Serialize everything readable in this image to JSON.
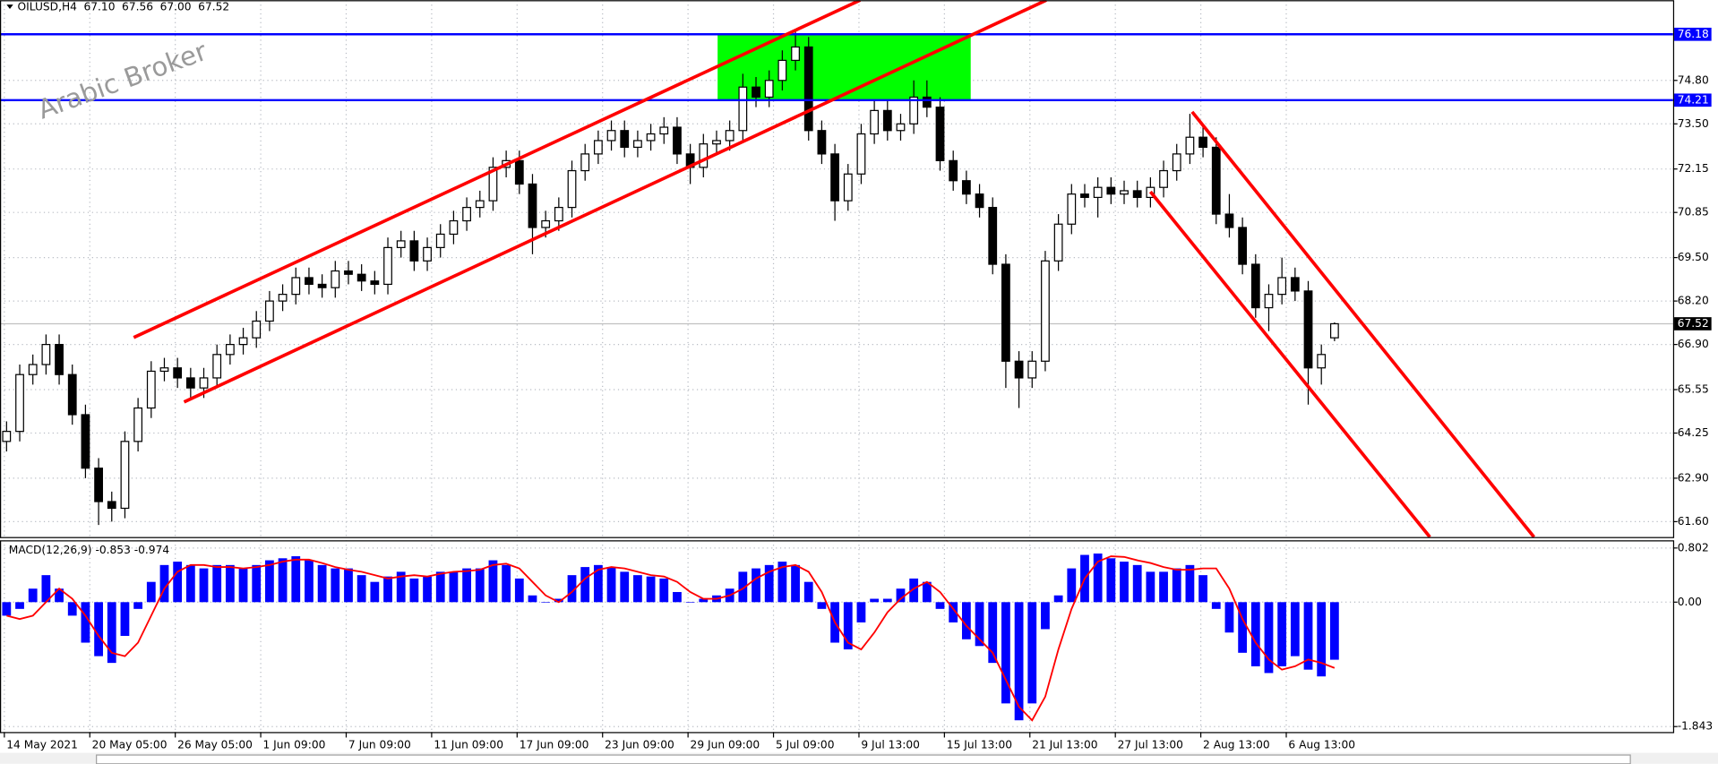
{
  "chart_data": [
    {
      "type": "candlestick",
      "title": "OILUSD,H4",
      "quote": [
        "67.10",
        "67.56",
        "67.00",
        "67.52"
      ],
      "watermark": "Arabic Broker",
      "xlim": [
        -0.5,
        126.75
      ],
      "xticks": [
        {
          "value": -0.17,
          "label": "14 May 2021"
        },
        {
          "value": 6.33,
          "label": "20 May 05:00"
        },
        {
          "value": 12.83,
          "label": "26 May 05:00"
        },
        {
          "value": 19.33,
          "label": "1 Jun 09:00"
        },
        {
          "value": 25.83,
          "label": "7 Jun 09:00"
        },
        {
          "value": 32.33,
          "label": "11 Jun 09:00"
        },
        {
          "value": 38.83,
          "label": "17 Jun 09:00"
        },
        {
          "value": 45.33,
          "label": "23 Jun 09:00"
        },
        {
          "value": 51.83,
          "label": "29 Jun 09:00"
        },
        {
          "value": 58.33,
          "label": "5 Jul 09:00"
        },
        {
          "value": 64.83,
          "label": "9 Jul 13:00"
        },
        {
          "value": 71.33,
          "label": "15 Jul 13:00"
        },
        {
          "value": 77.83,
          "label": "21 Jul 13:00"
        },
        {
          "value": 84.33,
          "label": "27 Jul 13:00"
        },
        {
          "value": 90.83,
          "label": "2 Aug 13:00"
        },
        {
          "value": 97.33,
          "label": "6 Aug 13:00"
        }
      ],
      "ylim": [
        61.14,
        77.2
      ],
      "yticks": [
        {
          "value": 61.6,
          "label": "61.60"
        },
        {
          "value": 62.9,
          "label": "62.90"
        },
        64.25,
        65.55,
        {
          "value": 66.9,
          "label": "66.90"
        },
        {
          "value": 68.2,
          "label": "68.20"
        },
        {
          "value": 69.5,
          "label": "69.50"
        },
        70.85,
        72.15,
        {
          "value": 73.5,
          "label": "73.50"
        },
        {
          "value": 74.8,
          "label": "74.80"
        }
      ],
      "grid": true,
      "colors": {
        "up": "#ffffff",
        "down": "#000000",
        "level": "#0000ff",
        "trend": "#ff0000",
        "zone": "#00ff00",
        "current": "#c0c0c0"
      },
      "open": [
        64.0,
        64.3,
        66.0,
        66.3,
        66.9,
        66.0,
        64.8,
        63.2,
        62.2,
        62.0,
        64.0,
        65.0,
        66.1,
        66.2,
        65.9,
        65.6,
        65.9,
        66.6,
        66.9,
        67.1,
        67.6,
        68.2,
        68.4,
        68.9,
        68.7,
        68.6,
        69.1,
        69.0,
        68.8,
        68.7,
        69.8,
        70.0,
        69.4,
        69.8,
        70.2,
        70.6,
        71.0,
        71.2,
        72.2,
        72.4,
        71.7,
        70.4,
        70.6,
        71.0,
        72.1,
        72.6,
        73.0,
        73.3,
        72.8,
        73.0,
        73.2,
        73.4,
        72.6,
        72.2,
        72.9,
        73.0,
        73.3,
        74.6,
        74.3,
        74.8,
        75.4,
        75.8,
        73.3,
        72.6,
        71.2,
        72.0,
        73.2,
        73.9,
        73.3,
        73.5,
        74.3,
        74.0,
        72.4,
        71.8,
        71.4,
        71.0,
        69.3,
        66.4,
        65.9,
        66.4,
        69.4,
        70.5,
        71.4,
        71.3,
        71.6,
        71.4,
        71.5,
        71.3,
        71.6,
        72.1,
        72.6,
        73.1,
        72.8,
        70.8,
        70.4,
        69.3,
        68.0,
        68.4,
        68.9,
        68.5,
        66.2,
        67.1
      ],
      "high": [
        64.6,
        66.3,
        66.6,
        67.2,
        67.2,
        66.3,
        65.1,
        63.5,
        62.5,
        64.3,
        65.3,
        66.4,
        66.5,
        66.5,
        66.2,
        66.2,
        66.9,
        67.2,
        67.4,
        67.9,
        68.5,
        68.7,
        69.2,
        69.2,
        69.0,
        69.4,
        69.4,
        69.3,
        69.1,
        70.1,
        70.3,
        70.3,
        70.1,
        70.5,
        70.9,
        71.3,
        71.5,
        72.5,
        72.7,
        72.7,
        72.0,
        70.9,
        71.3,
        72.4,
        72.9,
        73.3,
        73.6,
        73.6,
        73.3,
        73.5,
        73.7,
        73.7,
        72.9,
        73.2,
        73.3,
        73.6,
        75.0,
        74.9,
        75.1,
        75.7,
        76.3,
        76.1,
        73.6,
        72.9,
        72.3,
        73.5,
        74.2,
        74.2,
        73.8,
        74.8,
        74.8,
        74.3,
        72.7,
        72.1,
        71.7,
        71.3,
        69.6,
        66.7,
        66.7,
        69.7,
        70.8,
        71.7,
        71.7,
        71.9,
        71.9,
        71.8,
        71.8,
        71.9,
        72.4,
        72.9,
        73.8,
        73.4,
        73.1,
        71.4,
        70.7,
        69.6,
        68.7,
        69.5,
        69.2,
        68.8,
        66.9,
        67.56
      ],
      "low": [
        63.7,
        64.0,
        65.7,
        66.0,
        65.7,
        64.5,
        62.9,
        61.5,
        61.6,
        61.7,
        63.7,
        64.7,
        65.8,
        65.6,
        65.3,
        65.3,
        65.6,
        66.3,
        66.6,
        66.8,
        67.3,
        67.9,
        68.1,
        68.4,
        68.3,
        68.3,
        68.7,
        68.5,
        68.4,
        68.4,
        69.5,
        69.1,
        69.1,
        69.5,
        69.9,
        70.3,
        70.7,
        70.9,
        71.9,
        71.4,
        69.6,
        70.1,
        70.3,
        70.7,
        71.8,
        72.3,
        72.7,
        72.5,
        72.5,
        72.7,
        72.9,
        72.3,
        71.7,
        71.9,
        72.6,
        72.7,
        73.0,
        74.0,
        74.0,
        74.5,
        75.1,
        73.0,
        72.3,
        70.6,
        70.9,
        71.7,
        72.9,
        73.0,
        73.0,
        73.2,
        73.7,
        72.1,
        71.5,
        71.1,
        70.7,
        69.0,
        65.6,
        65.0,
        65.6,
        66.1,
        69.1,
        70.2,
        71.0,
        70.7,
        71.1,
        71.1,
        71.0,
        71.0,
        71.3,
        71.8,
        72.3,
        72.5,
        70.5,
        70.1,
        69.0,
        67.7,
        67.3,
        68.1,
        68.2,
        65.1,
        65.7,
        67.0
      ],
      "close": [
        64.3,
        66.0,
        66.3,
        66.9,
        66.0,
        64.8,
        63.2,
        62.2,
        62.0,
        64.0,
        65.0,
        66.1,
        66.2,
        65.9,
        65.6,
        65.9,
        66.6,
        66.9,
        67.1,
        67.6,
        68.2,
        68.4,
        68.9,
        68.7,
        68.6,
        69.1,
        69.0,
        68.8,
        68.7,
        69.8,
        70.0,
        69.4,
        69.8,
        70.2,
        70.6,
        71.0,
        71.2,
        72.2,
        72.4,
        71.7,
        70.4,
        70.6,
        71.0,
        72.1,
        72.6,
        73.0,
        73.3,
        72.8,
        73.0,
        73.2,
        73.4,
        72.6,
        72.2,
        72.9,
        73.0,
        73.3,
        74.6,
        74.3,
        74.8,
        75.4,
        75.8,
        73.3,
        72.6,
        71.2,
        72.0,
        73.2,
        73.9,
        73.3,
        73.5,
        74.3,
        74.0,
        72.4,
        71.8,
        71.4,
        71.0,
        69.3,
        66.4,
        65.9,
        66.4,
        69.4,
        70.5,
        71.4,
        71.3,
        71.6,
        71.4,
        71.5,
        71.3,
        71.6,
        72.1,
        72.6,
        73.1,
        72.8,
        70.8,
        70.4,
        69.3,
        68.0,
        68.4,
        68.9,
        68.5,
        66.2,
        66.6,
        67.52
      ],
      "levels": [
        {
          "value": 76.18,
          "label": "76.18"
        },
        {
          "value": 74.21,
          "label": "74.21"
        }
      ],
      "current_price": {
        "value": 67.52,
        "label": "67.52"
      },
      "zone": {
        "x": [
          54.08,
          73.33
        ],
        "y": [
          74.21,
          76.18
        ]
      },
      "trendlines": [
        {
          "x": [
            9.67,
            64.92
          ],
          "y": [
            67.11,
            77.2
          ]
        },
        {
          "x": [
            13.5,
            79.08
          ],
          "y": [
            65.18,
            77.2
          ]
        },
        {
          "x": [
            90.17,
            116.17
          ],
          "y": [
            73.86,
            61.14
          ]
        },
        {
          "x": [
            87.0,
            108.25
          ],
          "y": [
            71.47,
            61.14
          ]
        }
      ]
    },
    {
      "type": "macd",
      "title": "MACD(12,26,9) -0.853 -0.974",
      "xlim": [
        -0.5,
        126.75
      ],
      "ylim": [
        -1.924,
        0.916
      ],
      "yticks": [
        -1.843,
        {
          "value": 0,
          "label": "0.00"
        },
        0.802
      ],
      "grid": true,
      "series": [
        {
          "color": "#0000ff",
          "values": [
            -0.2,
            -0.1,
            0.2,
            0.4,
            0.2,
            -0.2,
            -0.6,
            -0.8,
            -0.9,
            -0.5,
            -0.1,
            0.3,
            0.55,
            0.6,
            0.55,
            0.5,
            0.55,
            0.55,
            0.5,
            0.55,
            0.62,
            0.65,
            0.68,
            0.62,
            0.55,
            0.5,
            0.5,
            0.4,
            0.3,
            0.38,
            0.45,
            0.35,
            0.38,
            0.45,
            0.45,
            0.5,
            0.5,
            0.62,
            0.55,
            0.35,
            0.1,
            0.0,
            0.05,
            0.4,
            0.52,
            0.55,
            0.52,
            0.45,
            0.4,
            0.38,
            0.35,
            0.15,
            0.0,
            0.05,
            0.1,
            0.2,
            0.45,
            0.5,
            0.55,
            0.6,
            0.55,
            0.3,
            -0.1,
            -0.6,
            -0.7,
            -0.3,
            0.05,
            0.05,
            0.2,
            0.35,
            0.3,
            -0.1,
            -0.3,
            -0.55,
            -0.65,
            -0.9,
            -1.5,
            -1.75,
            -1.5,
            -0.4,
            0.1,
            0.5,
            0.7,
            0.72,
            0.65,
            0.6,
            0.55,
            0.45,
            0.45,
            0.5,
            0.55,
            0.4,
            -0.1,
            -0.45,
            -0.75,
            -0.95,
            -1.05,
            -0.95,
            -0.8,
            -1.0,
            -1.1,
            -0.853
          ]
        },
        {
          "color": "#ff0000",
          "values": [
            -0.2,
            -0.25,
            -0.2,
            0.0,
            0.2,
            0.05,
            -0.2,
            -0.5,
            -0.75,
            -0.8,
            -0.6,
            -0.2,
            0.2,
            0.45,
            0.55,
            0.55,
            0.52,
            0.52,
            0.5,
            0.52,
            0.55,
            0.6,
            0.63,
            0.63,
            0.58,
            0.52,
            0.48,
            0.45,
            0.4,
            0.35,
            0.38,
            0.4,
            0.38,
            0.42,
            0.45,
            0.46,
            0.48,
            0.55,
            0.57,
            0.5,
            0.3,
            0.1,
            0.0,
            0.15,
            0.35,
            0.48,
            0.52,
            0.5,
            0.45,
            0.4,
            0.38,
            0.3,
            0.15,
            0.05,
            0.05,
            0.1,
            0.2,
            0.35,
            0.45,
            0.52,
            0.55,
            0.45,
            0.15,
            -0.3,
            -0.6,
            -0.7,
            -0.45,
            -0.15,
            0.05,
            0.2,
            0.3,
            0.15,
            -0.1,
            -0.35,
            -0.55,
            -0.75,
            -1.15,
            -1.55,
            -1.75,
            -1.4,
            -0.7,
            -0.1,
            0.35,
            0.6,
            0.68,
            0.67,
            0.62,
            0.58,
            0.52,
            0.48,
            0.48,
            0.5,
            0.5,
            0.2,
            -0.25,
            -0.6,
            -0.85,
            -1.0,
            -0.95,
            -0.85,
            -0.9,
            -0.974
          ]
        }
      ]
    }
  ]
}
